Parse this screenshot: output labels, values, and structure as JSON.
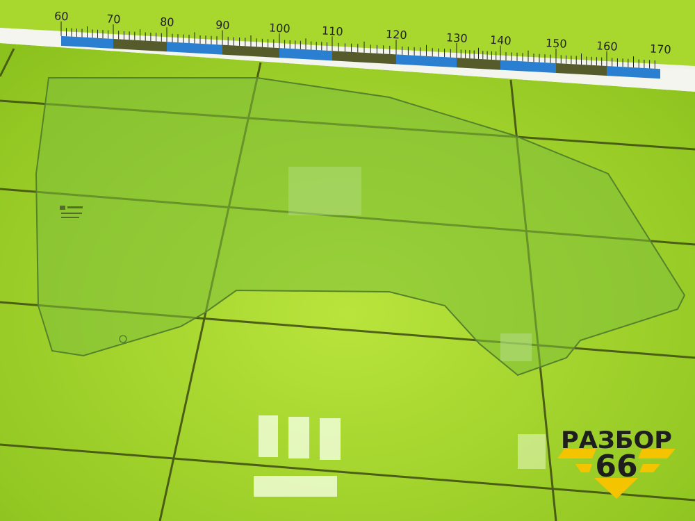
{
  "ruler": {
    "labels": [
      "60",
      "70",
      "80",
      "90",
      "100",
      "110",
      "120",
      "130",
      "140",
      "150",
      "160",
      "170"
    ]
  },
  "logo": {
    "line1": "РАЗБОР",
    "line2": "66",
    "accent_color": "#f5c400"
  },
  "colors": {
    "tile": "#a6d62c",
    "grout": "#3d4a12",
    "glass": "#7fbf3a",
    "ruler_blue": "#2a7fd0"
  }
}
